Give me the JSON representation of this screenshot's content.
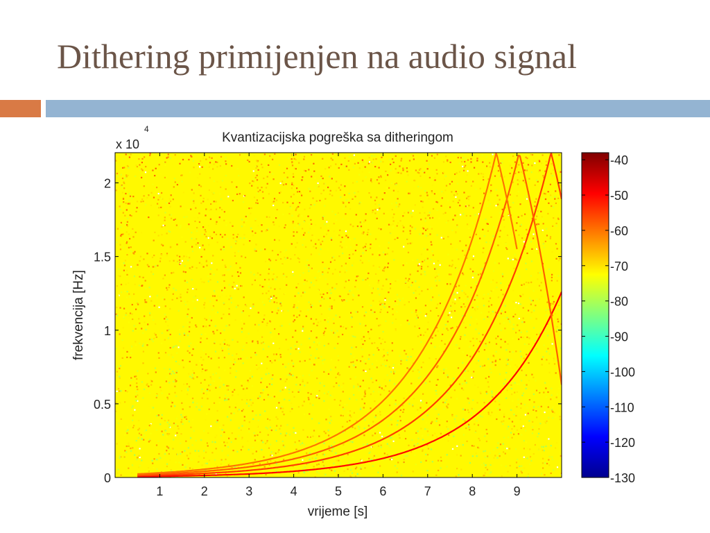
{
  "slide": {
    "title": "Dithering primijenjen na audio signal",
    "accent_left_color": "#d97a45",
    "accent_right_color": "#94b4d2",
    "title_color": "#6b5548"
  },
  "chart_data": {
    "type": "heatmap",
    "title": "Kvantizacijska pogreška sa ditheringom",
    "xlabel": "vrijeme [s]",
    "ylabel": "frekvencija [Hz]",
    "y_multiplier_label": "x 10",
    "y_multiplier_exponent": "4",
    "xlim": [
      0,
      10
    ],
    "ylim": [
      0,
      22050
    ],
    "x_ticks": [
      1,
      2,
      3,
      4,
      5,
      6,
      7,
      8,
      9
    ],
    "x_tick_labels": [
      "1",
      "2",
      "3",
      "4",
      "5",
      "6",
      "7",
      "8",
      "9"
    ],
    "y_ticks": [
      0,
      5000,
      10000,
      15000,
      20000
    ],
    "y_tick_labels": [
      "0",
      "0.5",
      "1",
      "1.5",
      "2"
    ],
    "background_level_db": -72,
    "colorbar": {
      "range": [
        -130,
        -38
      ],
      "ticks": [
        -40,
        -50,
        -60,
        -70,
        -80,
        -90,
        -100,
        -110,
        -120,
        -130
      ],
      "tick_labels": [
        "-40",
        "-50",
        "-60",
        "-70",
        "-80",
        "-90",
        "-100",
        "-110",
        "-120",
        "-130"
      ],
      "colormap": "jet"
    },
    "series": [
      {
        "harmonic": 1,
        "peak_db": -50,
        "points": [
          [
            0.5,
            60
          ],
          [
            1,
            80
          ],
          [
            2,
            140
          ],
          [
            3,
            240
          ],
          [
            4,
            420
          ],
          [
            5,
            740
          ],
          [
            6,
            1300
          ],
          [
            7,
            2300
          ],
          [
            8,
            4050
          ],
          [
            8.5,
            5400
          ],
          [
            9,
            7150
          ],
          [
            9.5,
            9500
          ],
          [
            10,
            12600
          ]
        ]
      },
      {
        "harmonic": 2,
        "peak_db": -55,
        "points": [
          [
            0.5,
            120
          ],
          [
            2,
            280
          ],
          [
            3,
            480
          ],
          [
            4,
            840
          ],
          [
            5,
            1480
          ],
          [
            6,
            2600
          ],
          [
            7,
            4600
          ],
          [
            8,
            8100
          ],
          [
            8.5,
            10800
          ],
          [
            9,
            14300
          ],
          [
            9.5,
            19000
          ],
          [
            10,
            25200
          ]
        ]
      },
      {
        "harmonic": 3,
        "peak_db": -58,
        "points": [
          [
            0.5,
            180
          ],
          [
            2,
            420
          ],
          [
            3,
            720
          ],
          [
            4,
            1260
          ],
          [
            5,
            2220
          ],
          [
            6,
            3900
          ],
          [
            7,
            6900
          ],
          [
            8,
            12150
          ],
          [
            8.5,
            16200
          ],
          [
            9,
            21450
          ],
          [
            10,
            37800
          ]
        ]
      },
      {
        "harmonic": 4,
        "peak_db": -60,
        "points": [
          [
            0.5,
            240
          ],
          [
            2,
            560
          ],
          [
            3,
            960
          ],
          [
            4,
            1680
          ],
          [
            5,
            2960
          ],
          [
            6,
            5200
          ],
          [
            7,
            9200
          ],
          [
            8,
            16200
          ],
          [
            8.5,
            21600
          ],
          [
            9,
            28600
          ]
        ]
      }
    ]
  }
}
